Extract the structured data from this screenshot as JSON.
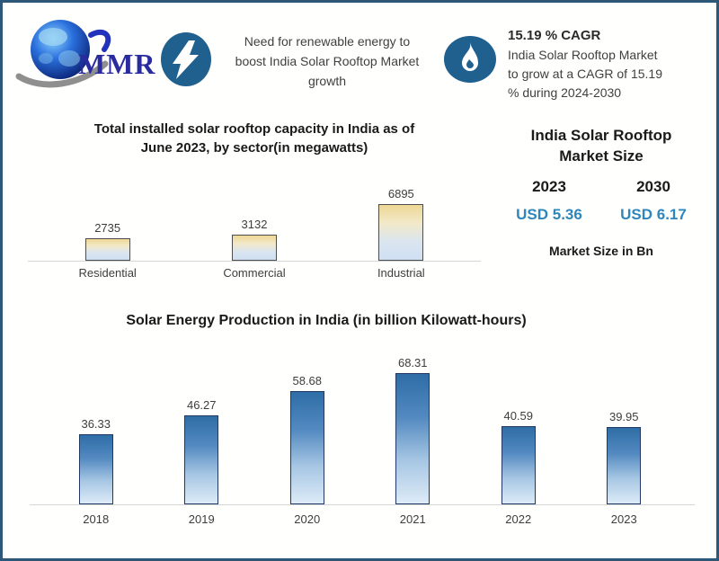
{
  "brand": {
    "name": "MMR"
  },
  "banners": {
    "renewable": {
      "text": "Need for renewable energy to\nboost India Solar Rooftop Market\ngrowth"
    },
    "cagr": {
      "heading": "15.19 % CAGR",
      "text": "India Solar Rooftop Market\nto grow at a CAGR of 15.19\n% during 2024-2030"
    }
  },
  "market_size_panel": {
    "title": "India Solar Rooftop\nMarket Size",
    "columns": [
      {
        "year": "2023",
        "value": "USD 5.36"
      },
      {
        "year": "2030",
        "value": "USD 6.17"
      }
    ],
    "footnote": "Market Size in Bn",
    "value_color": "#2e86ba"
  },
  "chart_data": [
    {
      "type": "bar",
      "title": "Total installed solar rooftop capacity in India as of\nJune 2023, by sector(in megawatts)",
      "categories": [
        "Residential",
        "Commercial",
        "Industrial"
      ],
      "values": [
        2735,
        3132,
        6895
      ],
      "xlabel": "",
      "ylabel": "",
      "ylim": [
        0,
        7000
      ],
      "grid": false,
      "legend": "none",
      "data_labels": true,
      "bar_gradient": [
        "#edd794",
        "#f2e9c9",
        "#dae5f0",
        "#cfe0f2"
      ],
      "bar_border": "#4d4d4d"
    },
    {
      "type": "bar",
      "title": "Solar Energy Production in India (in billion Kilowatt-hours)",
      "categories": [
        "2018",
        "2019",
        "2020",
        "2021",
        "2022",
        "2023"
      ],
      "values": [
        36.33,
        46.27,
        58.68,
        68.31,
        40.59,
        39.95
      ],
      "xlabel": "",
      "ylabel": "",
      "ylim": [
        0,
        70
      ],
      "grid": false,
      "legend": "none",
      "data_labels": true,
      "bar_gradient": [
        "#2f6da6",
        "#5289c0",
        "#a6c6e3",
        "#ddebf7"
      ],
      "bar_border": "#1f3864"
    }
  ],
  "colors": {
    "icon_circle": "#20608f",
    "frame_border": "#2d5877",
    "usd_blue": "#2e86ba",
    "logo_text": "#2b2ba0"
  }
}
